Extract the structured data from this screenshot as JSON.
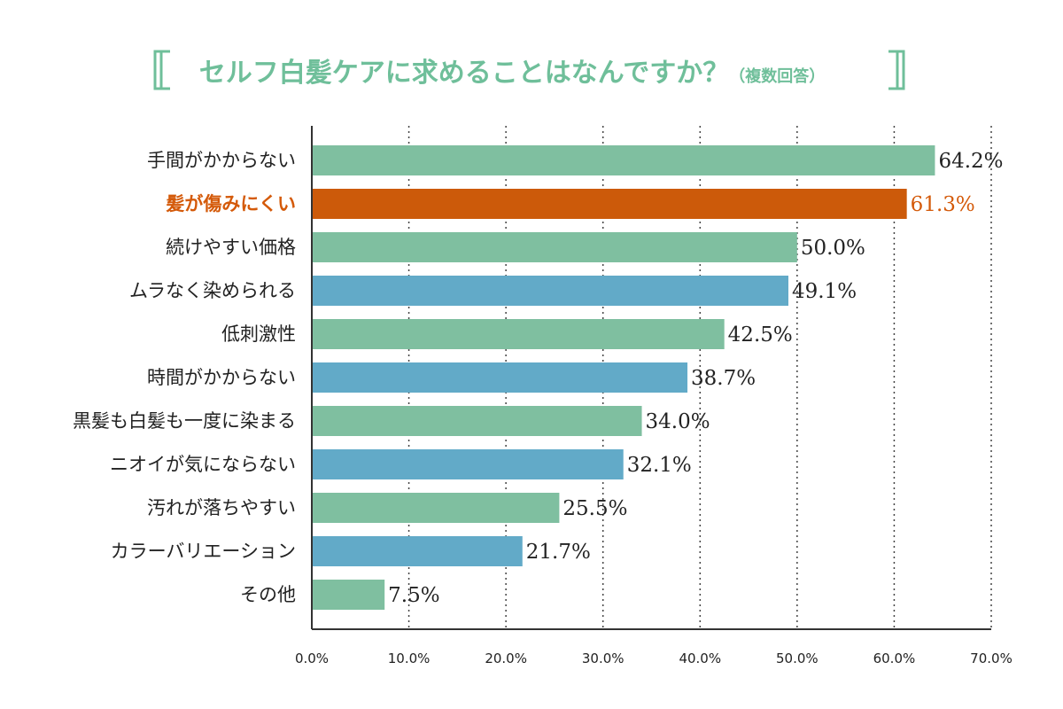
{
  "colors": {
    "title": "#6fbf9a",
    "bracket": "#6fbf9a",
    "highlight": "#d45a0a",
    "green": "#7fbfa0",
    "blue": "#62aac8",
    "orange": "#cc5a0a",
    "text": "#222222",
    "axis": "#333333",
    "grid": "#444444"
  },
  "chart_data": {
    "type": "bar",
    "orientation": "horizontal",
    "title": "セルフ白髪ケアに求めることはなんですか？",
    "subtitle": "（複数回答）",
    "categories": [
      "手間がかからない",
      "髪が傷みにくい",
      "続けやすい価格",
      "ムラなく染められる",
      "低刺激性",
      "時間がかからない",
      "黒髪も白髪も一度に染まる",
      "ニオイが気にならない",
      "汚れが落ちやすい",
      "カラーバリエーション",
      "その他"
    ],
    "values": [
      64.2,
      61.3,
      50.0,
      49.1,
      42.5,
      38.7,
      34.0,
      32.1,
      25.5,
      21.7,
      7.5
    ],
    "value_labels": [
      "64.2%",
      "61.3%",
      "50.0%",
      "49.1%",
      "42.5%",
      "38.7%",
      "34.0%",
      "32.1%",
      "25.5%",
      "21.7%",
      "7.5%"
    ],
    "bar_colors": [
      "green",
      "orange",
      "green",
      "blue",
      "green",
      "blue",
      "green",
      "blue",
      "green",
      "blue",
      "green"
    ],
    "highlight_index": 1,
    "xlim": [
      0,
      70
    ],
    "xticks": [
      0,
      10,
      20,
      30,
      40,
      50,
      60,
      70
    ],
    "xtick_labels": [
      "0.0%",
      "10.0%",
      "20.0%",
      "30.0%",
      "40.0%",
      "50.0%",
      "60.0%",
      "70.0%"
    ],
    "grid": "vertical dotted"
  }
}
